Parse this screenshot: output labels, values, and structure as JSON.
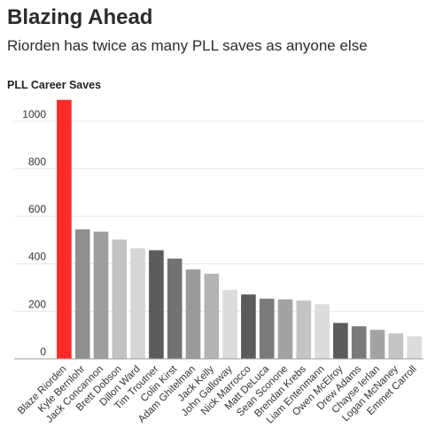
{
  "chart_data": {
    "type": "bar",
    "title": "Blazing Ahead",
    "subtitle": "Riorden has twice as many PLL saves as anyone else",
    "ylabel": "PLL Career Saves",
    "xlabel": "",
    "ylim": [
      0,
      1100
    ],
    "yticks": [
      0,
      200,
      400,
      600,
      800,
      1000
    ],
    "grid": true,
    "categories": [
      "Blaze Riorden",
      "Kyle Bernlohr",
      "Jack Concannon",
      "Brett Dobson",
      "Dillon Ward",
      "Tim Troutner",
      "Colin Kirst",
      "Adam Ghitelman",
      "Jack Kelly",
      "John Galloway",
      "Nick Marrocco",
      "Matt DeLuca",
      "Sean Sconone",
      "Brendan Krebs",
      "Liam Entenmann",
      "Owen McElroy",
      "Drew Adams",
      "Chayse Ierlan",
      "Logan McNaney",
      "Emmet Carroll"
    ],
    "values": [
      1090,
      545,
      535,
      502,
      465,
      457,
      422,
      376,
      358,
      290,
      271,
      253,
      250,
      245,
      230,
      151,
      137,
      122,
      107,
      95
    ],
    "colors": [
      "#ff2b2b",
      "#8f8f8f",
      "#9e9e9e",
      "#c2c2c2",
      "#d6d6d6",
      "#5c5c5c",
      "#737373",
      "#9a9a9a",
      "#b3b3b3",
      "#dcdcdc",
      "#5c5c5c",
      "#7a7a7a",
      "#a3a3a3",
      "#c4c4c4",
      "#dcdcdc",
      "#5c5c5c",
      "#7a7a7a",
      "#a3a3a3",
      "#c4c4c4",
      "#dcdcdc"
    ]
  }
}
